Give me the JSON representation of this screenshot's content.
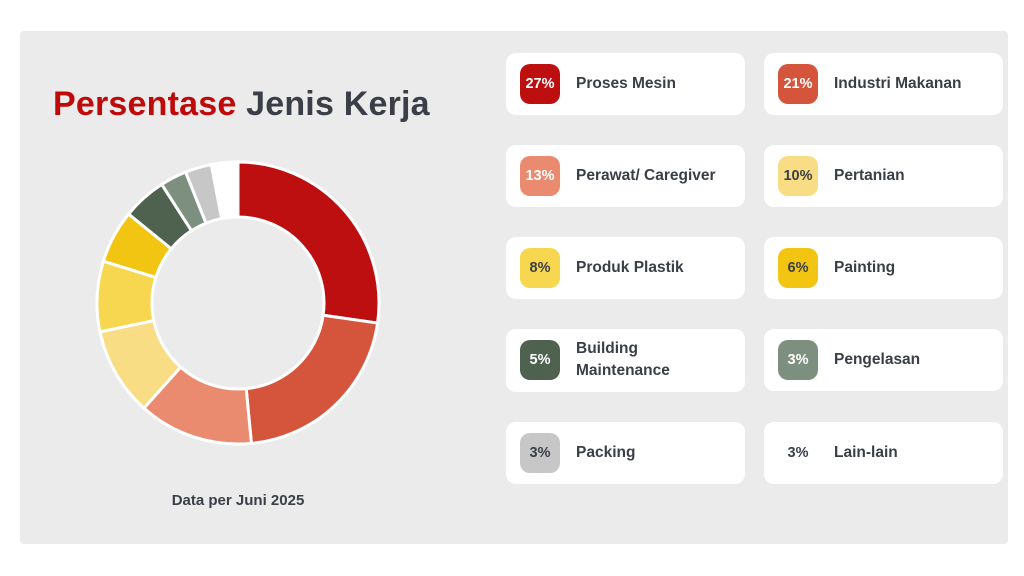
{
  "page": {
    "background": "#ffffff",
    "panel_background": "#ebebeb"
  },
  "header": {
    "title_accent": "Persentase",
    "title_rest": " Jenis Kerja",
    "accent_color": "#c00a0a",
    "text_color": "#3a3f47"
  },
  "chart_data": {
    "type": "pie",
    "subtype": "donut",
    "title": "Persentase Jenis Kerja",
    "caption": "Data per Juni 2025",
    "start_angle_deg": -90,
    "direction": "clockwise",
    "inner_radius_ratio": 0.61,
    "unit": "%",
    "categories": [
      "Proses Mesin",
      "Industri Makanan",
      "Perawat/ Caregiver",
      "Pertanian",
      "Produk Plastik",
      "Painting",
      "Building Maintenance",
      "Pengelasan",
      "Packing",
      "Lain-lain"
    ],
    "values": [
      27,
      21,
      13,
      10,
      8,
      6,
      5,
      3,
      3,
      3
    ],
    "colors": [
      "#bd0e10",
      "#d4553b",
      "#ea8a6e",
      "#f9dd84",
      "#f8d750",
      "#f2c513",
      "#4e624f",
      "#7d8f7e",
      "#c7c7c7",
      "#ffffff"
    ],
    "slice_border_color": "#ffffff",
    "legend_position": "right"
  },
  "legend": {
    "items": [
      {
        "pct": "27%",
        "label": "Proses Mesin",
        "badge_bg": "#bd0e10",
        "badge_fg": "#ffffff"
      },
      {
        "pct": "21%",
        "label": "Industri Makanan",
        "badge_bg": "#d4553b",
        "badge_fg": "#ffffff"
      },
      {
        "pct": "13%",
        "label": "Perawat/ Caregiver",
        "badge_bg": "#ea8a6e",
        "badge_fg": "#ffffff"
      },
      {
        "pct": "10%",
        "label": "Pertanian",
        "badge_bg": "#f9dd84",
        "badge_fg": "#3a3f47"
      },
      {
        "pct": "8%",
        "label": "Produk Plastik",
        "badge_bg": "#f8d750",
        "badge_fg": "#3a3f47"
      },
      {
        "pct": "6%",
        "label": "Painting",
        "badge_bg": "#f2c513",
        "badge_fg": "#3a3f47"
      },
      {
        "pct": "5%",
        "label": "Building Maintenance",
        "badge_bg": "#4e624f",
        "badge_fg": "#ffffff"
      },
      {
        "pct": "3%",
        "label": "Pengelasan",
        "badge_bg": "#7d8f7e",
        "badge_fg": "#ffffff"
      },
      {
        "pct": "3%",
        "label": "Packing",
        "badge_bg": "#c7c7c7",
        "badge_fg": "#3a3f47"
      },
      {
        "pct": "3%",
        "label": "Lain-lain",
        "badge_bg": "transparent",
        "badge_fg": "#3a3f47"
      }
    ]
  }
}
